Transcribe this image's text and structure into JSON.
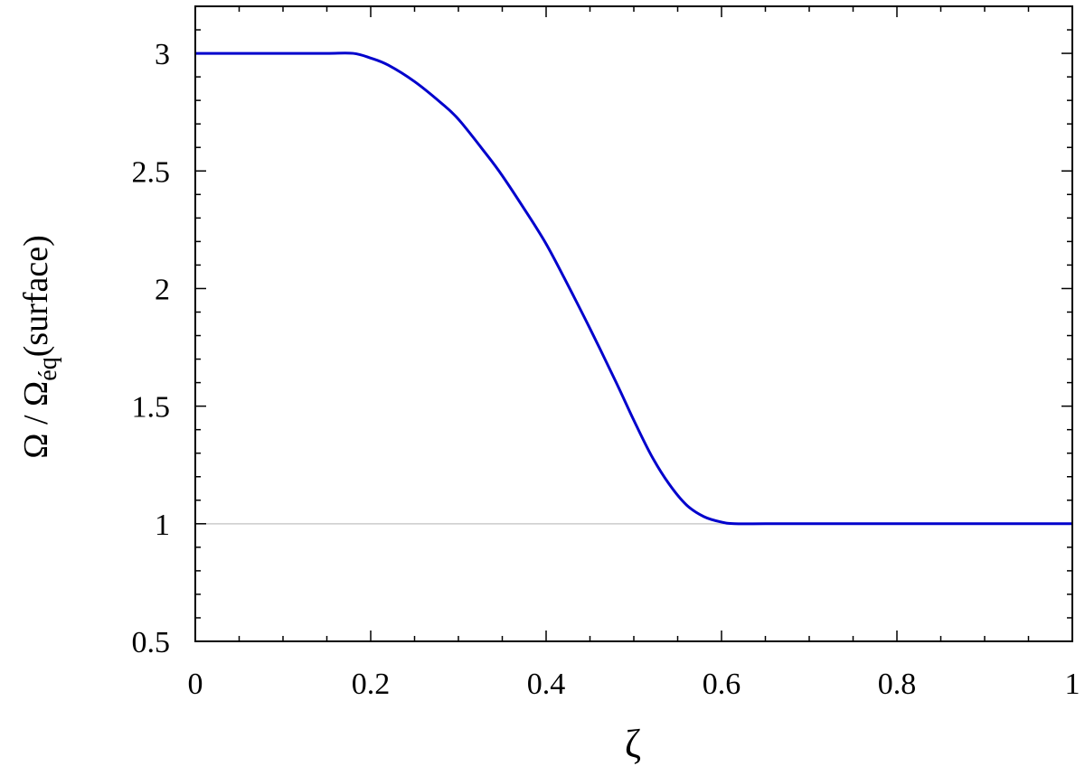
{
  "chart_data": {
    "type": "line",
    "title": "",
    "xlabel": "ζ",
    "ylabel": {
      "omega": "Ω",
      "separator": " / ",
      "omega2": "Ω",
      "subscript": "éq",
      "suffix": "(surface)"
    },
    "xlim": [
      0,
      1
    ],
    "ylim": [
      0.5,
      3.2
    ],
    "xticks": [
      {
        "value": 0,
        "label": "0"
      },
      {
        "value": 0.2,
        "label": "0.2"
      },
      {
        "value": 0.4,
        "label": "0.4"
      },
      {
        "value": 0.6,
        "label": "0.6"
      },
      {
        "value": 0.8,
        "label": "0.8"
      },
      {
        "value": 1,
        "label": "1"
      }
    ],
    "yticks": [
      {
        "value": 0.5,
        "label": "0.5"
      },
      {
        "value": 1,
        "label": "1"
      },
      {
        "value": 1.5,
        "label": "1.5"
      },
      {
        "value": 2,
        "label": "2"
      },
      {
        "value": 2.5,
        "label": "2.5"
      },
      {
        "value": 3,
        "label": "3"
      }
    ],
    "reference_line": {
      "y": 1,
      "color": "#cccccc"
    },
    "grid": false,
    "series": [
      {
        "color": "#0000cc",
        "x": [
          0,
          0.05,
          0.1,
          0.15,
          0.18,
          0.2,
          0.22,
          0.25,
          0.28,
          0.3,
          0.33,
          0.35,
          0.38,
          0.4,
          0.42,
          0.45,
          0.48,
          0.5,
          0.52,
          0.54,
          0.56,
          0.58,
          0.6,
          0.615,
          0.65,
          0.7,
          0.8,
          0.9,
          1.0
        ],
        "y": [
          3.0,
          3.0,
          3.0,
          3.0,
          3.0,
          2.98,
          2.95,
          2.88,
          2.79,
          2.72,
          2.58,
          2.48,
          2.31,
          2.19,
          2.05,
          1.83,
          1.6,
          1.44,
          1.29,
          1.17,
          1.08,
          1.03,
          1.007,
          1.0,
          1.0,
          1.0,
          1.0,
          1.0,
          1.0
        ]
      }
    ]
  }
}
